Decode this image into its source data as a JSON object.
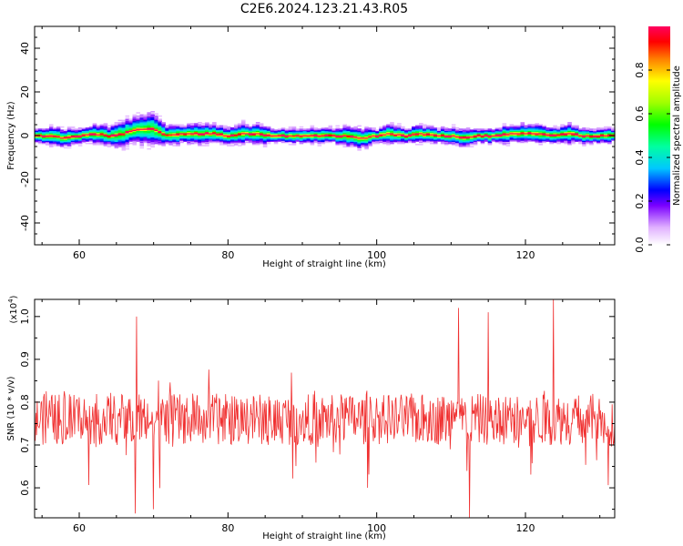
{
  "title": "C2E6.2024.123.21.43.R05",
  "chart_data": [
    {
      "type": "heatmap",
      "xlabel": "Height of straight line (km)",
      "ylabel": "Frequency (Hz)",
      "xlim": [
        54,
        132
      ],
      "ylim": [
        -50,
        50
      ],
      "xticks": [
        60,
        80,
        100,
        120
      ],
      "yticks": [
        -40,
        -20,
        0,
        20,
        40
      ],
      "colorbar": {
        "label": "Normalized spectral amplitude",
        "range": [
          0,
          1
        ],
        "ticks": [
          "0.0",
          "0.2",
          "0.4",
          "0.6",
          "0.8"
        ]
      },
      "ridge": {
        "description_values_hz": "center frequency of peak amplitude vs height",
        "x": [
          54,
          56,
          58,
          60,
          62,
          64,
          66,
          68,
          70,
          72,
          74,
          76,
          78,
          80,
          82,
          84,
          86,
          88,
          90,
          92,
          94,
          96,
          98,
          100,
          102,
          104,
          106,
          108,
          110,
          112,
          114,
          116,
          118,
          120,
          122,
          124,
          126,
          128,
          130,
          132
        ],
        "center": [
          0,
          0,
          -1,
          0,
          1,
          0,
          1,
          3,
          3,
          0,
          1,
          1,
          1,
          0,
          1,
          1,
          0,
          0,
          0,
          0,
          0,
          0,
          -1,
          0,
          1,
          0,
          1,
          0,
          0,
          -1,
          0,
          0,
          1,
          1,
          1,
          0,
          1,
          0,
          0,
          0
        ],
        "spread": [
          3,
          4,
          4,
          3,
          4,
          4,
          5,
          6,
          6,
          4,
          4,
          4,
          4,
          3,
          4,
          4,
          3,
          3,
          3,
          3,
          3,
          4,
          4,
          3,
          4,
          3,
          4,
          3,
          3,
          4,
          3,
          3,
          4,
          4,
          4,
          3,
          4,
          3,
          3,
          3
        ]
      }
    },
    {
      "type": "line",
      "xlabel": "Height of straight line (km)",
      "ylabel": "SNR (10 * v/v)",
      "yscale_note": "(x10",
      "yscale_exp": "4",
      "yscale_close": ")",
      "xlim": [
        54,
        132
      ],
      "ylim": [
        0.53,
        1.04
      ],
      "xticks": [
        60,
        80,
        100,
        120
      ],
      "yticks": [
        "0.6",
        "0.7",
        "0.8",
        "0.9",
        "1.0"
      ],
      "series": [
        {
          "color": "#f03030",
          "x_range": [
            54,
            132
          ],
          "n_points": 900,
          "baseline": 0.76,
          "noise_amplitude": 0.06,
          "peaks": [
            {
              "x": 67.7,
              "y": 1.0
            },
            {
              "x": 67.5,
              "y": 0.54
            },
            {
              "x": 111.0,
              "y": 1.02
            },
            {
              "x": 112.5,
              "y": 0.53
            },
            {
              "x": 115.0,
              "y": 1.01
            },
            {
              "x": 123.8,
              "y": 1.04
            },
            {
              "x": 98.8,
              "y": 0.6
            },
            {
              "x": 70.0,
              "y": 0.55
            }
          ]
        }
      ]
    }
  ]
}
